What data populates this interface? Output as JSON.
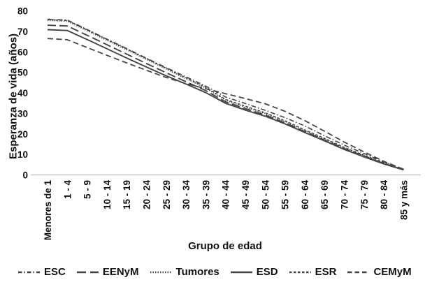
{
  "chart_data": {
    "type": "line",
    "xlabel": "Grupo de edad",
    "ylabel": "Esperanza de vida (años)",
    "ylim": [
      0,
      80
    ],
    "yticks": [
      0,
      10,
      20,
      30,
      40,
      50,
      60,
      70,
      80
    ],
    "grid": false,
    "legend_position": "bottom",
    "colors": {
      "line": "#454545",
      "axis_line": "#c9c9c9",
      "text": "#111111"
    },
    "categories": [
      "Menores de 1",
      "1 - 4",
      "5 - 9",
      "10 - 14",
      "15 - 19",
      "20 - 24",
      "25 - 29",
      "30 - 34",
      "35 - 39",
      "40 - 44",
      "45 - 49",
      "50 - 54",
      "55 - 59",
      "60 - 64",
      "65 - 69",
      "70 - 74",
      "75 - 79",
      "80 - 84",
      "85 y más"
    ],
    "series": [
      {
        "name": "ESC",
        "dash": "dash-dot",
        "values": [
          75.9,
          75.5,
          70.9,
          66.2,
          61.6,
          56.9,
          52.3,
          47.8,
          43.3,
          38.0,
          34.8,
          31.5,
          27.9,
          23.9,
          19.1,
          14.5,
          10.4,
          6.3,
          2.8
        ]
      },
      {
        "name": "EENyM",
        "dash": "long-dash",
        "values": [
          73.0,
          72.6,
          68.1,
          63.5,
          58.9,
          54.3,
          49.8,
          45.4,
          41.1,
          35.6,
          32.3,
          29.2,
          25.4,
          21.1,
          17.0,
          12.8,
          9.1,
          5.5,
          2.5
        ]
      },
      {
        "name": "Tumores",
        "dash": "dotted",
        "values": [
          75.3,
          74.9,
          70.3,
          65.6,
          61.0,
          56.3,
          51.6,
          46.9,
          42.3,
          36.4,
          33.0,
          29.9,
          26.0,
          21.6,
          17.4,
          13.1,
          9.4,
          5.7,
          2.5
        ]
      },
      {
        "name": "ESD",
        "dash": "solid",
        "values": [
          70.8,
          70.4,
          66.0,
          61.5,
          57.0,
          52.6,
          48.3,
          44.3,
          40.1,
          34.9,
          31.6,
          28.6,
          24.9,
          20.7,
          16.6,
          12.4,
          8.8,
          5.3,
          2.4
        ]
      },
      {
        "name": "ESR",
        "dash": "small-dash",
        "values": [
          75.7,
          75.3,
          70.7,
          66.0,
          61.4,
          56.7,
          52.0,
          47.3,
          42.7,
          36.8,
          33.5,
          30.3,
          26.4,
          22.0,
          17.8,
          13.4,
          9.6,
          5.9,
          2.6
        ]
      },
      {
        "name": "CEMyM",
        "dash": "medium-dash",
        "values": [
          66.5,
          65.9,
          62.1,
          58.3,
          54.6,
          51.0,
          47.5,
          44.5,
          42.0,
          39.6,
          37.2,
          34.7,
          31.0,
          26.5,
          21.3,
          16.0,
          11.2,
          6.6,
          2.7
        ]
      }
    ]
  }
}
